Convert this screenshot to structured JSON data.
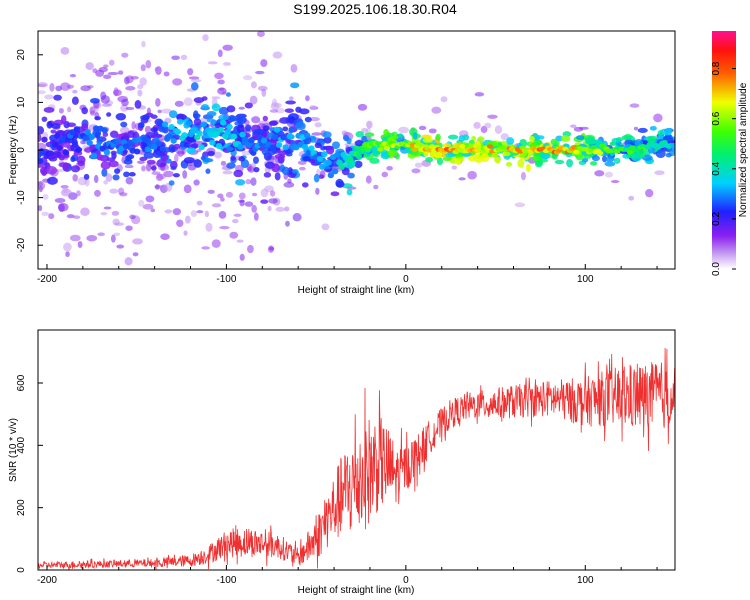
{
  "page_title": "S199.2025.106.18.30.R04",
  "chart_data": [
    {
      "type": "heatmap",
      "xlabel": "Height of straight line (km)",
      "ylabel": "Frequency (Hz)",
      "xlim": [
        -205,
        150
      ],
      "ylim": [
        -25,
        25
      ],
      "xticks": [
        "-200",
        "-100",
        "0",
        "100"
      ],
      "xtick_values": [
        -200,
        -100,
        0,
        100
      ],
      "yticks": [
        "20",
        "10",
        "0",
        "-10",
        "-20"
      ],
      "ytick_values": [
        20,
        10,
        0,
        -10,
        -20
      ],
      "colorbar": {
        "label": "Normalized spectral amplitude",
        "ticks": [
          "0.0",
          "0.2",
          "0.4",
          "0.6",
          "0.8"
        ],
        "tick_values": [
          0,
          0.2,
          0.4,
          0.6,
          0.8
        ],
        "range": [
          0,
          0.95
        ],
        "colormap": "rainbow (violet-blue-cyan-green-yellow-red-magenta)"
      },
      "description_points": {
        "x": [
          -200,
          -180,
          -160,
          -140,
          -120,
          -100,
          -80,
          -60,
          -40,
          -20,
          0,
          20,
          40,
          60,
          80,
          100,
          120,
          140,
          150
        ],
        "y_center": [
          0,
          2,
          1,
          2,
          4,
          3,
          1,
          2,
          -3,
          1,
          1,
          0,
          0,
          0,
          0,
          0,
          0,
          1,
          1
        ],
        "amplitude": [
          0.25,
          0.3,
          0.3,
          0.3,
          0.4,
          0.4,
          0.3,
          0.35,
          0.35,
          0.6,
          0.7,
          0.85,
          0.75,
          0.75,
          0.8,
          0.7,
          0.55,
          0.5,
          0.4
        ]
      }
    },
    {
      "type": "line",
      "xlabel": "Height of straight line (km)",
      "ylabel": "SNR (10 * v/v)",
      "xlim": [
        -205,
        150
      ],
      "ylim": [
        0,
        770
      ],
      "xticks": [
        "-200",
        "-100",
        "0",
        "100"
      ],
      "xtick_values": [
        -200,
        -100,
        0,
        100
      ],
      "yticks": [
        "0",
        "200",
        "400",
        "600"
      ],
      "ytick_values": [
        0,
        200,
        400,
        600
      ],
      "color": "#f03030",
      "series": [
        {
          "x": [
            -205,
            -180,
            -160,
            -140,
            -120,
            -110,
            -100,
            -90,
            -80,
            -70,
            -60,
            -50,
            -40,
            -35,
            -30,
            -25,
            -20,
            -15,
            -10,
            -5,
            0,
            5,
            10,
            15,
            20,
            25,
            30,
            35,
            40,
            50,
            60,
            70,
            80,
            90,
            100,
            110,
            120,
            130,
            140,
            150
          ],
          "y": [
            15,
            18,
            20,
            22,
            30,
            50,
            85,
            90,
            85,
            75,
            40,
            100,
            200,
            240,
            270,
            300,
            320,
            350,
            330,
            300,
            330,
            360,
            400,
            440,
            470,
            500,
            515,
            525,
            530,
            535,
            540,
            545,
            550,
            545,
            540,
            550,
            555,
            555,
            560,
            560
          ],
          "noise": [
            10,
            12,
            12,
            14,
            20,
            30,
            45,
            50,
            45,
            40,
            30,
            70,
            110,
            140,
            170,
            180,
            180,
            160,
            130,
            100,
            80,
            70,
            60,
            55,
            50,
            48,
            45,
            45,
            45,
            50,
            55,
            55,
            60,
            70,
            80,
            90,
            100,
            110,
            110,
            110
          ]
        }
      ]
    }
  ]
}
